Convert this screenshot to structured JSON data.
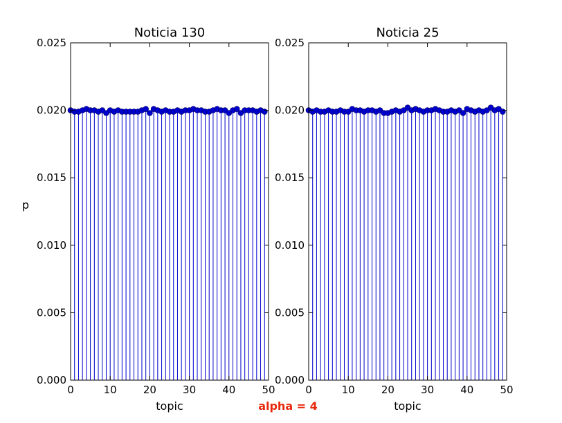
{
  "figure": {
    "caption": "alpha = 4",
    "caption_color": "#e8280a"
  },
  "chart_data": [
    {
      "type": "stem",
      "title": "Noticia 130",
      "xlabel": "topic",
      "ylabel": "p",
      "xlim": [
        0,
        50
      ],
      "ylim": [
        0,
        0.025
      ],
      "xticks": [
        "0",
        "10",
        "20",
        "30",
        "40",
        "50"
      ],
      "yticks": [
        "0.000",
        "0.005",
        "0.010",
        "0.015",
        "0.020",
        "0.025"
      ],
      "color": "#0000cc",
      "x": [
        0,
        1,
        2,
        3,
        4,
        5,
        6,
        7,
        8,
        9,
        10,
        11,
        12,
        13,
        14,
        15,
        16,
        17,
        18,
        19,
        20,
        21,
        22,
        23,
        24,
        25,
        26,
        27,
        28,
        29,
        30,
        31,
        32,
        33,
        34,
        35,
        36,
        37,
        38,
        39,
        40,
        41,
        42,
        43,
        44,
        45,
        46,
        47,
        48,
        49
      ],
      "values": [
        0.02,
        0.0199,
        0.0199,
        0.02,
        0.0201,
        0.02,
        0.02,
        0.0199,
        0.02,
        0.0198,
        0.02,
        0.0199,
        0.02,
        0.0199,
        0.0199,
        0.0199,
        0.0199,
        0.0199,
        0.02,
        0.0201,
        0.0198,
        0.0201,
        0.02,
        0.0199,
        0.02,
        0.0199,
        0.0199,
        0.02,
        0.0199,
        0.02,
        0.02,
        0.0201,
        0.02,
        0.02,
        0.0199,
        0.0199,
        0.02,
        0.0201,
        0.02,
        0.02,
        0.0198,
        0.02,
        0.0201,
        0.0198,
        0.02,
        0.02,
        0.02,
        0.0199,
        0.02,
        0.0199
      ]
    },
    {
      "type": "stem",
      "title": "Noticia 25",
      "xlabel": "topic",
      "ylabel": "",
      "xlim": [
        0,
        50
      ],
      "ylim": [
        0,
        0.025
      ],
      "xticks": [
        "0",
        "10",
        "20",
        "30",
        "40",
        "50"
      ],
      "yticks": [
        "0.000",
        "0.005",
        "0.010",
        "0.015",
        "0.020",
        "0.025"
      ],
      "color": "#0000cc",
      "x": [
        0,
        1,
        2,
        3,
        4,
        5,
        6,
        7,
        8,
        9,
        10,
        11,
        12,
        13,
        14,
        15,
        16,
        17,
        18,
        19,
        20,
        21,
        22,
        23,
        24,
        25,
        26,
        27,
        28,
        29,
        30,
        31,
        32,
        33,
        34,
        35,
        36,
        37,
        38,
        39,
        40,
        41,
        42,
        43,
        44,
        45,
        46,
        47,
        48,
        49
      ],
      "values": [
        0.02,
        0.0199,
        0.02,
        0.0199,
        0.0199,
        0.02,
        0.0199,
        0.0199,
        0.02,
        0.0199,
        0.0199,
        0.0201,
        0.02,
        0.02,
        0.0199,
        0.02,
        0.02,
        0.0199,
        0.02,
        0.0198,
        0.0198,
        0.0199,
        0.02,
        0.0199,
        0.02,
        0.0202,
        0.02,
        0.0201,
        0.02,
        0.0199,
        0.02,
        0.02,
        0.0201,
        0.02,
        0.0199,
        0.0199,
        0.02,
        0.0199,
        0.02,
        0.0198,
        0.0201,
        0.02,
        0.0199,
        0.02,
        0.0199,
        0.02,
        0.0202,
        0.02,
        0.0201,
        0.0199
      ]
    }
  ]
}
